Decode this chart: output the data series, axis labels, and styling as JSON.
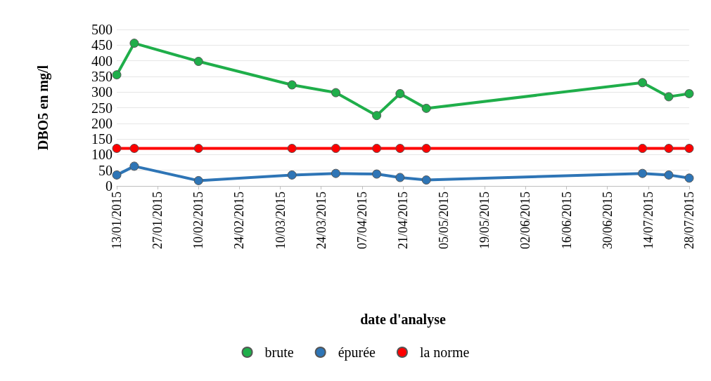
{
  "chart_data": {
    "type": "line",
    "xlabel": "date d'analyse",
    "ylabel": "DBO5 en mg/l",
    "x": [
      "2015-01-13",
      "2015-01-19",
      "2015-02-10",
      "2015-03-14",
      "2015-03-29",
      "2015-04-12",
      "2015-04-20",
      "2015-04-29",
      "2015-07-12",
      "2015-07-21",
      "2015-07-28"
    ],
    "series": [
      {
        "name": "brute",
        "color": "#1fae4a",
        "values": [
          355,
          456,
          398,
          323,
          298,
          225,
          295,
          248,
          330,
          285,
          295
        ]
      },
      {
        "name": "épurée",
        "color": "#2e75b6",
        "values": [
          35,
          63,
          17,
          35,
          40,
          38,
          27,
          19,
          40,
          35,
          25
        ]
      },
      {
        "name": "la norme",
        "color": "#ff0000",
        "values": [
          120,
          120,
          120,
          120,
          120,
          120,
          120,
          120,
          120,
          120,
          120
        ]
      }
    ],
    "xlim": [
      "2015-01-13",
      "2015-07-28"
    ],
    "xticks": [
      {
        "value": "2015-01-13",
        "label": "13/01/2015"
      },
      {
        "value": "2015-01-27",
        "label": "27/01/2015"
      },
      {
        "value": "2015-02-10",
        "label": "10/02/2015"
      },
      {
        "value": "2015-02-24",
        "label": "24/02/2015"
      },
      {
        "value": "2015-03-10",
        "label": "10/03/2015"
      },
      {
        "value": "2015-03-24",
        "label": "24/03/2015"
      },
      {
        "value": "2015-04-07",
        "label": "07/04/2015"
      },
      {
        "value": "2015-04-21",
        "label": "21/04/2015"
      },
      {
        "value": "2015-05-05",
        "label": "05/05/2015"
      },
      {
        "value": "2015-05-19",
        "label": "19/05/2015"
      },
      {
        "value": "2015-06-02",
        "label": "02/06/2015"
      },
      {
        "value": "2015-06-16",
        "label": "16/06/2015"
      },
      {
        "value": "2015-06-30",
        "label": "30/06/2015"
      },
      {
        "value": "2015-07-14",
        "label": "14/07/2015"
      },
      {
        "value": "2015-07-28",
        "label": "28/07/2015"
      }
    ],
    "ylim": [
      0,
      500
    ],
    "yticks": [
      0,
      50,
      100,
      150,
      200,
      250,
      300,
      350,
      400,
      450,
      500
    ],
    "grid": "y",
    "legend": "bottom",
    "marker": "circle",
    "line_style": "solid"
  }
}
